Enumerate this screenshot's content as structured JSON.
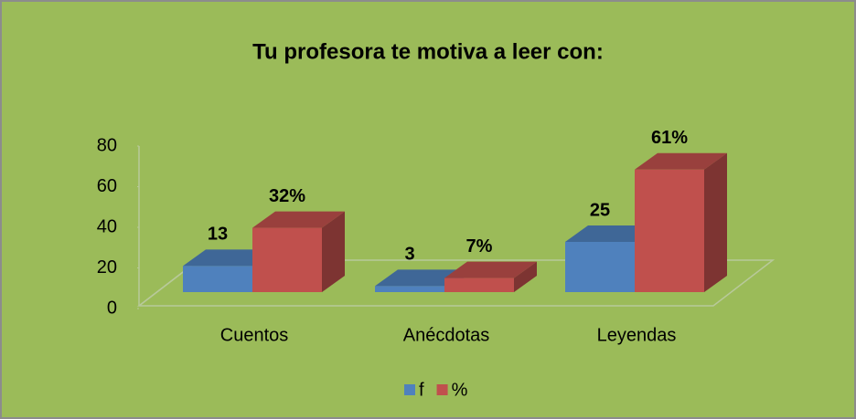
{
  "chart_data": {
    "type": "bar3d",
    "title": "Tu profesora te motiva a leer con:",
    "categories": [
      "Cuentos",
      "Anécdotas",
      "Leyendas"
    ],
    "series": [
      {
        "name": "f",
        "color": "#4f81bd",
        "values": [
          13,
          3,
          25
        ]
      },
      {
        "name": "%",
        "color": "#c0504d",
        "values": [
          32,
          7,
          61
        ],
        "value_labels": [
          "32%",
          "7%",
          "61%"
        ]
      }
    ],
    "ylim": [
      0,
      80
    ],
    "yticks": [
      0,
      20,
      40,
      60,
      80
    ],
    "legend": "bottom"
  }
}
